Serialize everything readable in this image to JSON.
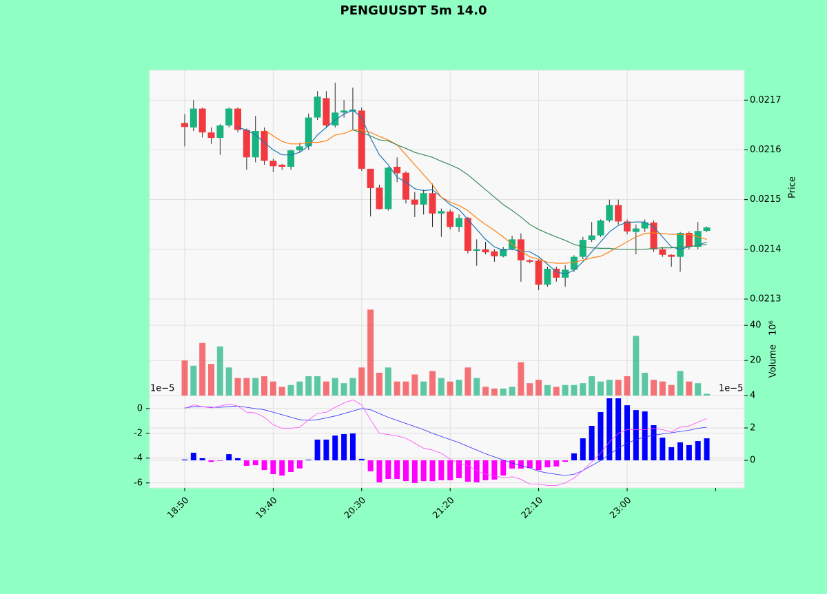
{
  "chart_data": {
    "type": "candlestick",
    "title": "PENGUUSDT 5m 14.0",
    "categories": [
      "18:50",
      null,
      null,
      null,
      null,
      null,
      null,
      null,
      null,
      null,
      "19:40",
      null,
      null,
      null,
      null,
      null,
      null,
      null,
      null,
      null,
      "20:30",
      null,
      null,
      null,
      null,
      null,
      null,
      null,
      null,
      null,
      "21:20",
      null,
      null,
      null,
      null,
      null,
      null,
      null,
      null,
      null,
      "22:10",
      null,
      null,
      null,
      null,
      null,
      null,
      null,
      null,
      null,
      "23:00",
      null,
      null,
      null,
      null,
      null,
      null,
      null,
      null,
      null
    ],
    "open": [
      0.021654,
      0.021645,
      0.021683,
      0.021635,
      0.021624,
      0.021649,
      0.021683,
      0.02164,
      0.021585,
      0.021638,
      0.021578,
      0.02157,
      0.021566,
      0.021599,
      0.021607,
      0.021665,
      0.021704,
      0.021649,
      0.021675,
      0.021677,
      0.021679,
      0.021562,
      0.021524,
      0.021481,
      0.021566,
      0.021554,
      0.0215,
      0.02149,
      0.021513,
      0.021472,
      0.021476,
      0.021445,
      0.021463,
      0.021397,
      0.0214,
      0.021396,
      0.021386,
      0.021401,
      0.02142,
      0.021378,
      0.021377,
      0.021329,
      0.021361,
      0.021343,
      0.021359,
      0.021385,
      0.021419,
      0.021428,
      0.021458,
      0.021489,
      0.021456,
      0.021435,
      0.021442,
      0.021454,
      0.0214,
      0.021389,
      0.021385,
      0.021433,
      0.021405,
      0.021437
    ],
    "high": [
      0.021672,
      0.0217,
      0.021685,
      0.021645,
      0.021652,
      0.021685,
      0.021685,
      0.021643,
      0.021668,
      0.021645,
      0.021582,
      0.021572,
      0.0216,
      0.021614,
      0.021673,
      0.021718,
      0.021718,
      0.021735,
      0.0217,
      0.021725,
      0.021685,
      0.021562,
      0.02153,
      0.021566,
      0.021585,
      0.021557,
      0.021515,
      0.02152,
      0.021532,
      0.021482,
      0.02148,
      0.02147,
      0.021465,
      0.02142,
      0.021415,
      0.0214,
      0.021405,
      0.021427,
      0.021432,
      0.02138,
      0.02138,
      0.021365,
      0.021365,
      0.021368,
      0.021388,
      0.021425,
      0.021455,
      0.02146,
      0.0215,
      0.0215,
      0.02146,
      0.02145,
      0.02146,
      0.021458,
      0.021405,
      0.02139,
      0.021435,
      0.021436,
      0.021455,
      0.021446
    ],
    "low": [
      0.021607,
      0.021638,
      0.021625,
      0.021612,
      0.02159,
      0.021645,
      0.021635,
      0.02156,
      0.021575,
      0.02157,
      0.021555,
      0.02156,
      0.02156,
      0.021595,
      0.0216,
      0.02166,
      0.021645,
      0.021645,
      0.021665,
      0.02164,
      0.021558,
      0.021466,
      0.02148,
      0.021478,
      0.021535,
      0.021492,
      0.021465,
      0.02147,
      0.021445,
      0.021425,
      0.02144,
      0.021435,
      0.021392,
      0.021367,
      0.02139,
      0.021375,
      0.021384,
      0.021398,
      0.021335,
      0.021372,
      0.021318,
      0.021325,
      0.021335,
      0.021325,
      0.021355,
      0.02138,
      0.021415,
      0.021425,
      0.021455,
      0.02145,
      0.02143,
      0.02139,
      0.021435,
      0.021395,
      0.021385,
      0.021365,
      0.021355,
      0.0214,
      0.0214,
      0.021435
    ],
    "close": [
      0.021646,
      0.021683,
      0.021635,
      0.021624,
      0.021649,
      0.021683,
      0.02164,
      0.021585,
      0.021638,
      0.021578,
      0.021567,
      0.021566,
      0.021599,
      0.021607,
      0.021665,
      0.021707,
      0.021649,
      0.021675,
      0.021679,
      0.021681,
      0.021562,
      0.021523,
      0.021481,
      0.021564,
      0.021553,
      0.0215,
      0.02149,
      0.021513,
      0.021472,
      0.021477,
      0.021445,
      0.021463,
      0.021397,
      0.0214,
      0.021394,
      0.021386,
      0.021401,
      0.02142,
      0.021378,
      0.021375,
      0.021329,
      0.021361,
      0.021343,
      0.021359,
      0.021385,
      0.021419,
      0.021428,
      0.021458,
      0.021489,
      0.021456,
      0.021436,
      0.021442,
      0.021454,
      0.0214,
      0.021389,
      0.021385,
      0.021433,
      0.021405,
      0.021437,
      0.021444
    ],
    "up_color": "#19b37f",
    "down_color": "#f2393f",
    "ylabel": "Price",
    "ylim": [
      0.0213,
      0.02176
    ],
    "yticks": [
      0.0213,
      0.0214,
      0.0215,
      0.0216,
      0.0217
    ],
    "grid": true,
    "ma": [
      {
        "color": "#1f77b4",
        "values": [
          null,
          null,
          null,
          null,
          null,
          null,
          0.021645,
          0.02164,
          0.02163,
          0.021615,
          0.0216,
          0.02159,
          0.02159,
          0.021595,
          0.021608,
          0.02163,
          0.021645,
          0.02166,
          0.021672,
          0.02168,
          0.021665,
          0.021624,
          0.02159,
          0.02157,
          0.021545,
          0.021535,
          0.021522,
          0.021518,
          0.02152,
          0.021505,
          0.02149,
          0.02148,
          0.02146,
          0.02144,
          0.02142,
          0.021405,
          0.021398,
          0.0214,
          0.021396,
          0.021395,
          0.021385,
          0.02137,
          0.021355,
          0.02135,
          0.021358,
          0.021375,
          0.021395,
          0.021415,
          0.021435,
          0.021448,
          0.021454,
          0.021455,
          0.021455,
          0.021445,
          0.021425,
          0.021405,
          0.0214,
          0.021405,
          0.021408,
          0.021415
        ]
      },
      {
        "color": "#ff7f0e",
        "values": [
          null,
          null,
          null,
          null,
          null,
          null,
          null,
          null,
          null,
          0.02164,
          0.021628,
          0.021617,
          0.021612,
          0.021612,
          0.021615,
          0.021615,
          0.021618,
          0.02163,
          0.021633,
          0.02164,
          0.02164,
          0.021635,
          0.021627,
          0.02162,
          0.02161,
          0.02159,
          0.02157,
          0.02155,
          0.02153,
          0.021505,
          0.021495,
          0.021488,
          0.021478,
          0.021463,
          0.02145,
          0.021438,
          0.021425,
          0.02141,
          0.021397,
          0.021385,
          0.02138,
          0.021374,
          0.021372,
          0.021372,
          0.021374,
          0.021378,
          0.021383,
          0.021386,
          0.021395,
          0.021405,
          0.021415,
          0.021425,
          0.021432,
          0.021433,
          0.021432,
          0.02143,
          0.02143,
          0.02143,
          0.021425,
          0.02142
        ]
      },
      {
        "color": "#3a8a5c",
        "values": [
          null,
          null,
          null,
          null,
          null,
          null,
          null,
          null,
          null,
          null,
          null,
          null,
          null,
          null,
          null,
          null,
          null,
          null,
          null,
          0.02164,
          0.021635,
          0.021628,
          0.02162,
          0.021618,
          0.02161,
          0.021603,
          0.021595,
          0.02159,
          0.021585,
          0.021577,
          0.02157,
          0.021562,
          0.02155,
          0.021535,
          0.02152,
          0.021505,
          0.02149,
          0.021478,
          0.021465,
          0.02145,
          0.02144,
          0.021432,
          0.021425,
          0.021418,
          0.02141,
          0.021405,
          0.021403,
          0.021402,
          0.021402,
          0.0214,
          0.0214,
          0.0214,
          0.0214,
          0.021402,
          0.021403,
          0.021403,
          0.021405,
          0.021405,
          0.021408,
          0.02141
        ]
      }
    ],
    "volume": {
      "ylabel": "Volume",
      "offset_label": "10⁶",
      "values": [
        20,
        17,
        30,
        18,
        28,
        16,
        10,
        10,
        10,
        11,
        8,
        5,
        6,
        8,
        11,
        11,
        8,
        10,
        7,
        10,
        16,
        49,
        13,
        16,
        8,
        8,
        12,
        8,
        14,
        10,
        8,
        9,
        16,
        10,
        5,
        4,
        4,
        5,
        19,
        7,
        9,
        6,
        5,
        6,
        6,
        7,
        11,
        8,
        9,
        9,
        11,
        34,
        13,
        9,
        8,
        6,
        14,
        8,
        7,
        1
      ],
      "ylim": [
        0,
        55
      ],
      "yticks": [
        20,
        40
      ]
    },
    "macd": {
      "offset_label": "1e−5",
      "y2_offset_label": "1e−5",
      "ylim": [
        -6.4,
        1.05
      ],
      "yticks": [
        0,
        -2,
        -4,
        -6
      ],
      "y2lim": [
        -1.7,
        4.0
      ],
      "y2ticks": [
        0,
        2,
        4
      ],
      "histogram": {
        "axis": "y2",
        "up_color": "#0000ff",
        "down_color": "#ff00ff",
        "values": [
          0.05,
          0.47,
          0.13,
          -0.1,
          -0.03,
          0.38,
          0.13,
          -0.34,
          -0.3,
          -0.6,
          -0.85,
          -0.94,
          -0.72,
          -0.5,
          0.04,
          1.28,
          1.28,
          1.53,
          1.62,
          1.66,
          0.09,
          -0.68,
          -1.36,
          -1.15,
          -1.15,
          -1.28,
          -1.4,
          -1.28,
          -1.28,
          -1.23,
          -1.23,
          -1.1,
          -1.32,
          -1.36,
          -1.23,
          -1.19,
          -0.94,
          -0.51,
          -0.51,
          -0.47,
          -0.6,
          -0.43,
          -0.38,
          -0.09,
          0.43,
          1.36,
          2.13,
          2.98,
          3.83,
          3.83,
          3.4,
          3.1,
          3.02,
          2.17,
          1.4,
          0.81,
          1.11,
          0.94,
          1.19,
          1.36
        ]
      },
      "lines": [
        {
          "color": "#2a2aff",
          "values": [
            0.05,
            0.15,
            0.15,
            0.1,
            0.1,
            0.15,
            0.2,
            0.1,
            0,
            -0.1,
            -0.3,
            -0.5,
            -0.7,
            -0.9,
            -0.95,
            -0.9,
            -0.75,
            -0.6,
            -0.4,
            -0.2,
            0.0,
            -0.1,
            -0.4,
            -0.7,
            -0.95,
            -1.2,
            -1.45,
            -1.7,
            -2.0,
            -2.25,
            -2.5,
            -2.75,
            -3.05,
            -3.35,
            -3.65,
            -3.9,
            -4.15,
            -4.4,
            -4.6,
            -4.8,
            -5.05,
            -5.2,
            -5.3,
            -5.4,
            -5.3,
            -5.0,
            -4.6,
            -4.2,
            -3.7,
            -3.2,
            -2.8,
            -2.5,
            -2.3,
            -2.15,
            -2.05,
            -1.95,
            -1.85,
            -1.75,
            -1.6,
            -1.5
          ]
        },
        {
          "color": "#ff44ff",
          "values": [
            0.0,
            0.3,
            0.15,
            0.05,
            0.2,
            0.35,
            0.2,
            -0.3,
            -0.35,
            -0.7,
            -1.3,
            -1.6,
            -1.6,
            -1.5,
            -0.9,
            -0.4,
            -0.3,
            0.1,
            0.45,
            0.7,
            0.3,
            -0.9,
            -2.0,
            -2.1,
            -2.2,
            -2.4,
            -2.8,
            -3.2,
            -3.35,
            -3.6,
            -4.1,
            -4.4,
            -4.6,
            -5.0,
            -5.3,
            -5.4,
            -5.6,
            -5.5,
            -5.7,
            -6.1,
            -6.1,
            -6.2,
            -6.2,
            -6.0,
            -5.6,
            -5.0,
            -4.3,
            -3.6,
            -2.7,
            -2.0,
            -1.7,
            -1.7,
            -1.7,
            -1.6,
            -1.7,
            -1.9,
            -1.5,
            -1.4,
            -1.1,
            -0.8
          ]
        }
      ]
    }
  }
}
